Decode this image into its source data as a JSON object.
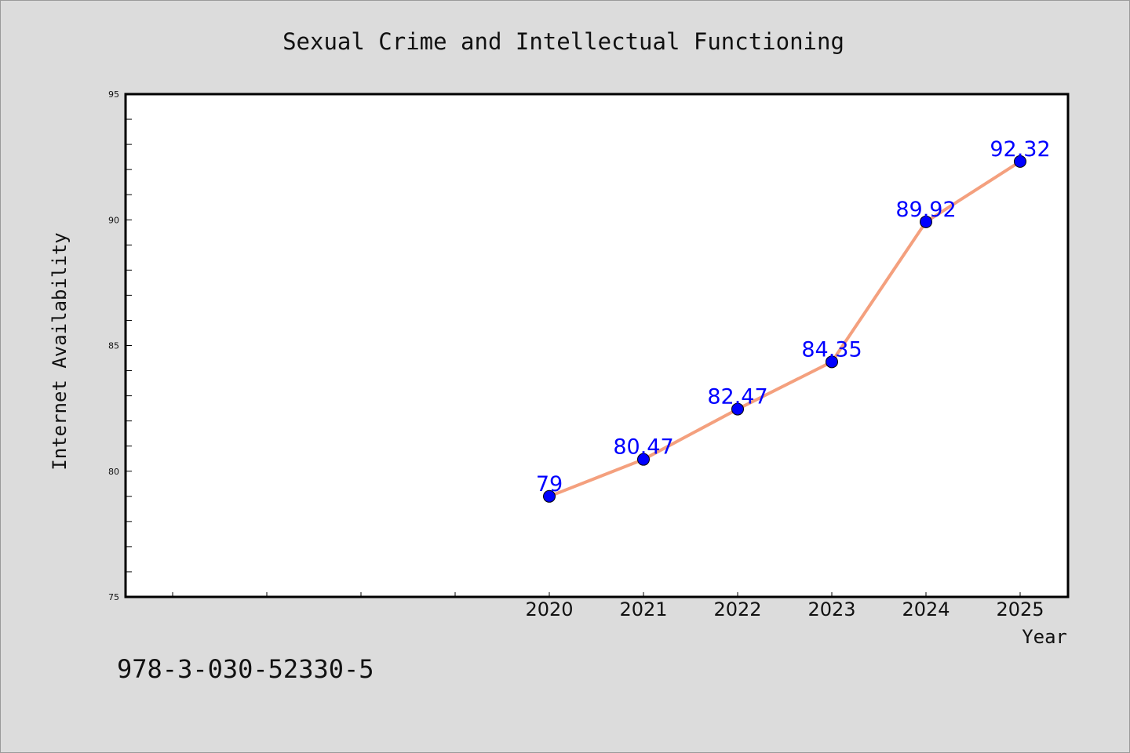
{
  "footer": {
    "isbn": "978-3-030-52330-5"
  },
  "chart_data": {
    "type": "line",
    "title": "Sexual Crime and Intellectual Functioning",
    "xlabel": "Year",
    "ylabel": "Internet Availability",
    "x": [
      "2020",
      "2021",
      "2022",
      "2023",
      "2024",
      "2025"
    ],
    "series": [
      {
        "values": [
          79,
          80.47,
          82.47,
          84.35,
          89.92,
          92.32
        ],
        "data_labels": [
          "79",
          "80.47",
          "82.47",
          "84.35",
          "89.92",
          "92.32"
        ],
        "line_color": "#f4a07e",
        "marker_color": "#0000ff"
      }
    ],
    "ylim": [
      75,
      95
    ],
    "yticks": [
      "75",
      "80",
      "85",
      "90",
      "95"
    ],
    "grid": false,
    "colors": {
      "background": "#dcdcdc",
      "plot_background": "#ffffff",
      "axis": "#000000",
      "label_color": "#0000ff"
    }
  }
}
